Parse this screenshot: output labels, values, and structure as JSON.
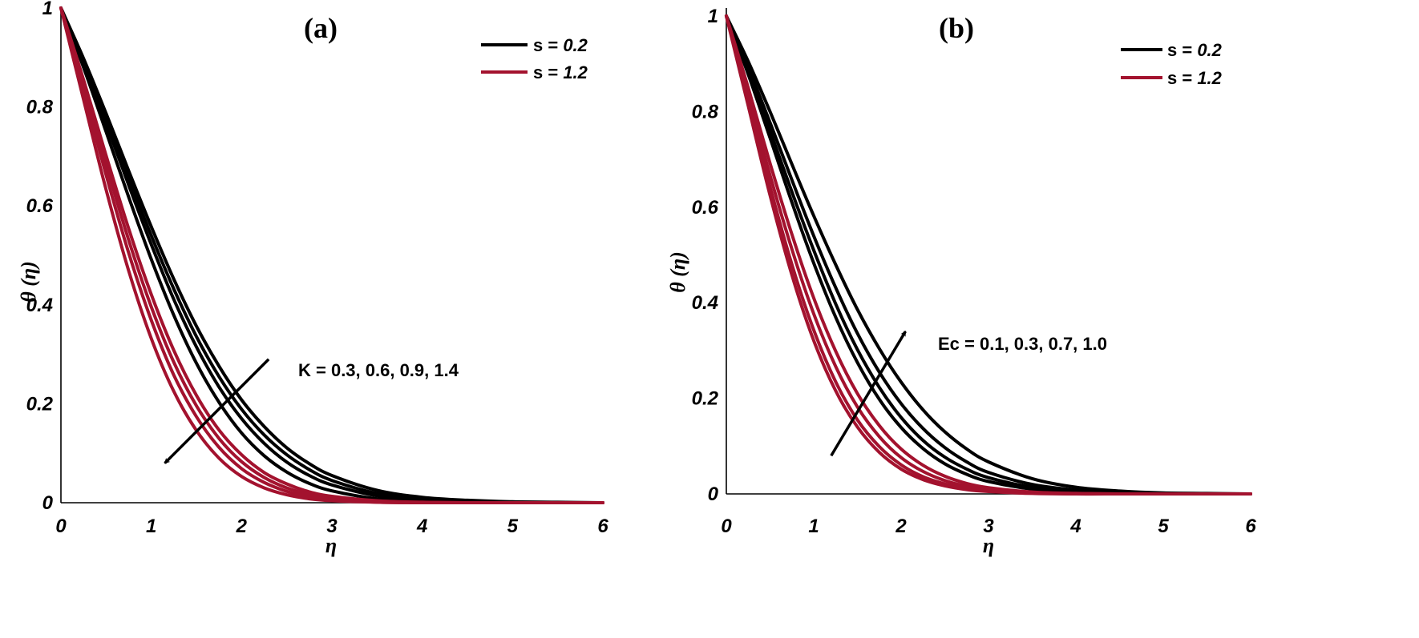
{
  "colors": {
    "s_low": "#000000",
    "s_high": "#a3122e"
  },
  "chart_data": [
    {
      "type": "line",
      "title": "(a)",
      "xlabel": "η",
      "ylabel": "θ (η)",
      "xlim": [
        0,
        6
      ],
      "ylim": [
        0,
        1
      ],
      "xticks": [
        0,
        1,
        2,
        3,
        4,
        5,
        6
      ],
      "yticks": [
        0,
        0.2,
        0.4,
        0.6,
        0.8,
        1
      ],
      "ytick_labels": [
        "0",
        "0.2",
        "0.4",
        "0.6",
        "0.8",
        "1"
      ],
      "grid": false,
      "legend": {
        "position": "top-right",
        "entries": [
          {
            "prefix": "s = ",
            "value": "0.2",
            "color": "#000000"
          },
          {
            "prefix": "s = ",
            "value": "1.2",
            "color": "#a3122e"
          }
        ]
      },
      "annotation": {
        "text": "K = 0.3, 0.6, 0.9, 1.4",
        "arrow_from": [
          2.3,
          0.29
        ],
        "arrow_to": [
          1.15,
          0.08
        ]
      },
      "x": [
        0,
        0.25,
        0.5,
        0.75,
        1,
        1.25,
        1.5,
        1.75,
        2,
        2.25,
        2.5,
        2.75,
        3,
        3.5,
        4,
        4.5,
        5,
        5.5,
        6
      ],
      "series": [
        {
          "group": "s_low",
          "values": [
            1.0,
            0.898,
            0.787,
            0.671,
            0.558,
            0.452,
            0.357,
            0.276,
            0.208,
            0.154,
            0.111,
            0.079,
            0.055,
            0.025,
            0.011,
            0.005,
            0.002,
            0.001,
            0.0
          ]
        },
        {
          "group": "s_low",
          "values": [
            1.0,
            0.893,
            0.777,
            0.657,
            0.54,
            0.432,
            0.336,
            0.255,
            0.189,
            0.137,
            0.097,
            0.067,
            0.045,
            0.019,
            0.008,
            0.003,
            0.001,
            0.0,
            0.0
          ]
        },
        {
          "group": "s_low",
          "values": [
            1.0,
            0.888,
            0.767,
            0.642,
            0.522,
            0.411,
            0.315,
            0.234,
            0.17,
            0.12,
            0.082,
            0.055,
            0.036,
            0.014,
            0.005,
            0.002,
            0.001,
            0.0,
            0.0
          ]
        },
        {
          "group": "s_low",
          "values": [
            1.0,
            0.88,
            0.75,
            0.618,
            0.492,
            0.379,
            0.282,
            0.203,
            0.141,
            0.095,
            0.062,
            0.039,
            0.024,
            0.008,
            0.003,
            0.001,
            0.0,
            0.0,
            0.0
          ]
        },
        {
          "group": "s_high",
          "values": [
            1.0,
            0.855,
            0.702,
            0.554,
            0.421,
            0.308,
            0.217,
            0.147,
            0.097,
            0.061,
            0.038,
            0.022,
            0.013,
            0.004,
            0.001,
            0.0,
            0.0,
            0.0,
            0.0
          ]
        },
        {
          "group": "s_high",
          "values": [
            1.0,
            0.845,
            0.684,
            0.531,
            0.396,
            0.284,
            0.196,
            0.13,
            0.083,
            0.051,
            0.03,
            0.017,
            0.009,
            0.002,
            0.001,
            0.0,
            0.0,
            0.0,
            0.0
          ]
        },
        {
          "group": "s_high",
          "values": [
            1.0,
            0.833,
            0.663,
            0.505,
            0.369,
            0.258,
            0.174,
            0.112,
            0.069,
            0.041,
            0.023,
            0.012,
            0.006,
            0.001,
            0.0,
            0.0,
            0.0,
            0.0,
            0.0
          ]
        },
        {
          "group": "s_high",
          "values": [
            1.0,
            0.815,
            0.633,
            0.469,
            0.332,
            0.225,
            0.146,
            0.09,
            0.053,
            0.03,
            0.016,
            0.008,
            0.004,
            0.001,
            0.0,
            0.0,
            0.0,
            0.0,
            0.0
          ]
        }
      ]
    },
    {
      "type": "line",
      "title": "(b)",
      "xlabel": "η",
      "ylabel": "θ (η)",
      "xlim": [
        0,
        6
      ],
      "ylim": [
        0,
        1
      ],
      "xticks": [
        0,
        1,
        2,
        3,
        4,
        5,
        6
      ],
      "yticks": [
        0,
        0.2,
        0.4,
        0.6,
        0.8,
        1
      ],
      "ytick_labels": [
        "0",
        "0.2",
        "0.4",
        "0.6",
        "0.8",
        "1"
      ],
      "grid": false,
      "legend": {
        "position": "top-right",
        "entries": [
          {
            "prefix": "s = ",
            "value": "0.2",
            "color": "#000000"
          },
          {
            "prefix": "s = ",
            "value": "1.2",
            "color": "#a3122e"
          }
        ]
      },
      "annotation": {
        "text": "Ec = 0.1, 0.3, 0.7, 1.0",
        "arrow_from": [
          1.2,
          0.08
        ],
        "arrow_to": [
          2.05,
          0.34
        ]
      },
      "x": [
        0,
        0.25,
        0.5,
        0.75,
        1,
        1.25,
        1.5,
        1.75,
        2,
        2.25,
        2.5,
        2.75,
        3,
        3.5,
        4,
        4.5,
        5,
        5.5,
        6
      ],
      "series": [
        {
          "group": "s_low",
          "values": [
            1.0,
            0.878,
            0.745,
            0.61,
            0.483,
            0.37,
            0.275,
            0.198,
            0.139,
            0.095,
            0.063,
            0.041,
            0.026,
            0.01,
            0.004,
            0.001,
            0.0,
            0.0,
            0.0
          ]
        },
        {
          "group": "s_low",
          "values": [
            1.0,
            0.885,
            0.76,
            0.632,
            0.51,
            0.398,
            0.302,
            0.223,
            0.16,
            0.112,
            0.077,
            0.052,
            0.034,
            0.014,
            0.006,
            0.002,
            0.001,
            0.0,
            0.0
          ]
        },
        {
          "group": "s_low",
          "values": [
            1.0,
            0.893,
            0.777,
            0.657,
            0.54,
            0.432,
            0.336,
            0.255,
            0.189,
            0.137,
            0.097,
            0.067,
            0.045,
            0.02,
            0.008,
            0.003,
            0.001,
            0.0,
            0.0
          ]
        },
        {
          "group": "s_low",
          "values": [
            1.0,
            0.905,
            0.8,
            0.69,
            0.582,
            0.48,
            0.386,
            0.304,
            0.234,
            0.176,
            0.13,
            0.094,
            0.067,
            0.032,
            0.014,
            0.006,
            0.002,
            0.001,
            0.0
          ]
        },
        {
          "group": "s_high",
          "values": [
            1.0,
            0.812,
            0.625,
            0.458,
            0.321,
            0.216,
            0.14,
            0.087,
            0.052,
            0.03,
            0.017,
            0.009,
            0.005,
            0.001,
            0.0,
            0.0,
            0.0,
            0.0,
            0.0
          ]
        },
        {
          "group": "s_high",
          "values": [
            1.0,
            0.822,
            0.643,
            0.48,
            0.343,
            0.235,
            0.155,
            0.099,
            0.061,
            0.036,
            0.021,
            0.011,
            0.006,
            0.002,
            0.0,
            0.0,
            0.0,
            0.0,
            0.0
          ]
        },
        {
          "group": "s_high",
          "values": [
            1.0,
            0.835,
            0.667,
            0.512,
            0.377,
            0.267,
            0.182,
            0.12,
            0.076,
            0.047,
            0.028,
            0.016,
            0.009,
            0.003,
            0.001,
            0.0,
            0.0,
            0.0,
            0.0
          ]
        },
        {
          "group": "s_high",
          "values": [
            1.0,
            0.85,
            0.692,
            0.543,
            0.41,
            0.299,
            0.21,
            0.143,
            0.094,
            0.06,
            0.037,
            0.022,
            0.013,
            0.004,
            0.001,
            0.0,
            0.0,
            0.0,
            0.0
          ]
        }
      ]
    }
  ]
}
